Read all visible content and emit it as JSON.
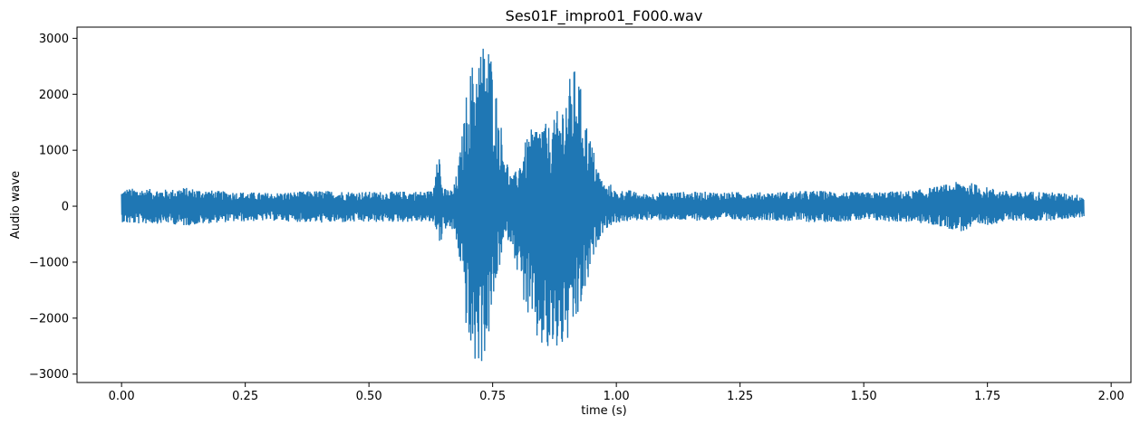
{
  "chart_data": {
    "type": "line",
    "title": "Ses01F_impro01_F000.wav",
    "xlabel": "time (s)",
    "ylabel": "Audio wave",
    "xlim": [
      -0.09,
      2.04
    ],
    "ylim": [
      -3150,
      3200
    ],
    "xticks": [
      0.0,
      0.25,
      0.5,
      0.75,
      1.0,
      1.25,
      1.5,
      1.75,
      2.0
    ],
    "xtick_labels": [
      "0.00",
      "0.25",
      "0.50",
      "0.75",
      "1.00",
      "1.25",
      "1.50",
      "1.75",
      "2.00"
    ],
    "yticks": [
      -3000,
      -2000,
      -1000,
      0,
      1000,
      2000,
      3000
    ],
    "ytick_labels": [
      "−3000",
      "−2000",
      "−1000",
      "0",
      "1000",
      "2000",
      "3000"
    ],
    "grid": false,
    "series_color": "#1f77b4",
    "x_range": [
      0.0,
      1.945
    ],
    "envelope": {
      "x": [
        0.0,
        0.01,
        0.1,
        0.12,
        0.2,
        0.3,
        0.4,
        0.5,
        0.6,
        0.63,
        0.64,
        0.645,
        0.65,
        0.67,
        0.68,
        0.69,
        0.7,
        0.71,
        0.72,
        0.73,
        0.74,
        0.75,
        0.76,
        0.77,
        0.78,
        0.79,
        0.8,
        0.81,
        0.82,
        0.83,
        0.84,
        0.85,
        0.86,
        0.87,
        0.88,
        0.89,
        0.9,
        0.91,
        0.92,
        0.93,
        0.94,
        0.95,
        0.96,
        0.97,
        0.98,
        0.99,
        1.0,
        1.02,
        1.05,
        1.1,
        1.2,
        1.3,
        1.4,
        1.5,
        1.6,
        1.65,
        1.7,
        1.75,
        1.8,
        1.85,
        1.9,
        1.945
      ],
      "max": [
        280,
        320,
        300,
        340,
        270,
        240,
        280,
        260,
        270,
        280,
        1530,
        580,
        320,
        300,
        700,
        1400,
        2300,
        2600,
        2800,
        2950,
        3050,
        2600,
        1900,
        1300,
        800,
        500,
        700,
        1000,
        1250,
        1400,
        1500,
        1550,
        1450,
        1450,
        1700,
        1850,
        2150,
        2400,
        2550,
        2000,
        1500,
        1150,
        800,
        500,
        350,
        400,
        250,
        310,
        220,
        260,
        260,
        250,
        280,
        250,
        280,
        360,
        460,
        340,
        260,
        270,
        240,
        200
      ],
      "min": [
        -280,
        -320,
        -310,
        -360,
        -290,
        -260,
        -300,
        -290,
        -280,
        -300,
        -500,
        -750,
        -400,
        -450,
        -800,
        -1400,
        -2600,
        -2850,
        -2900,
        -2800,
        -2500,
        -1900,
        -1300,
        -800,
        -600,
        -700,
        -1200,
        -1600,
        -2000,
        -2300,
        -2500,
        -2600,
        -2750,
        -2700,
        -2650,
        -2600,
        -2500,
        -2400,
        -2150,
        -1800,
        -1500,
        -1100,
        -700,
        -500,
        -400,
        -350,
        -300,
        -280,
        -250,
        -260,
        -260,
        -250,
        -290,
        -260,
        -290,
        -360,
        -460,
        -340,
        -260,
        -270,
        -240,
        -200
      ]
    }
  }
}
